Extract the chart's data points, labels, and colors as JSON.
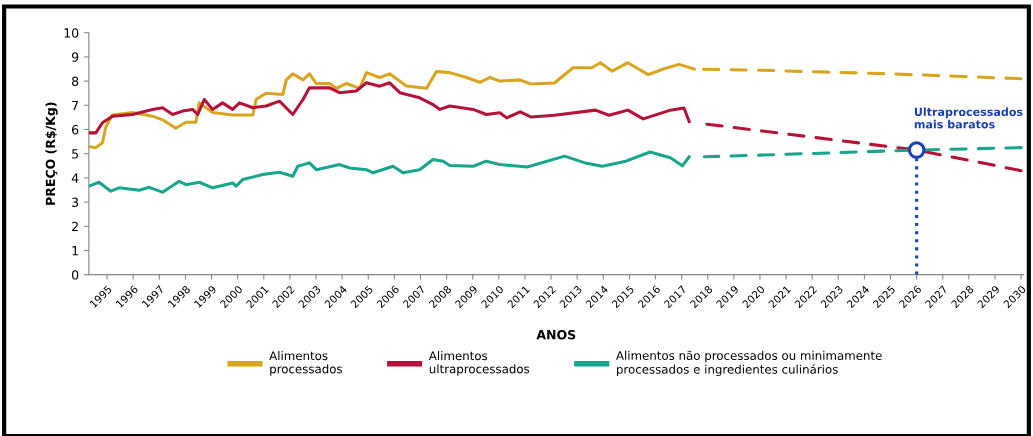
{
  "chart_data": {
    "type": "line",
    "xlabel": "ANOS",
    "ylabel": "PREÇO (R$/Kg)",
    "xlim": [
      1994.3,
      2030.1
    ],
    "ylim": [
      0,
      10
    ],
    "xticks": [
      1995,
      1996,
      1997,
      1998,
      1999,
      2000,
      2001,
      2002,
      2003,
      2004,
      2005,
      2006,
      2007,
      2008,
      2009,
      2010,
      2011,
      2012,
      2013,
      2014,
      2015,
      2016,
      2017,
      2018,
      2019,
      2020,
      2021,
      2022,
      2023,
      2024,
      2025,
      2026,
      2027,
      2028,
      2029,
      2030
    ],
    "yticks": [
      0,
      1,
      2,
      3,
      4,
      5,
      6,
      7,
      8,
      9,
      10
    ],
    "grid": false,
    "legend": "bottom",
    "marker": "none",
    "line_style": "solid",
    "series": [
      {
        "name": "Alimentos\nprocessados",
        "color": "#d9a521",
        "x": [
          1994.31,
          1994.57,
          1994.82,
          1994.95,
          1995.2,
          1995.97,
          1996.74,
          1997.12,
          1997.63,
          1998.02,
          1998.4,
          1998.53,
          1999.04,
          1999.81,
          2000.58,
          2000.71,
          2001.09,
          2001.73,
          2001.86,
          2002.11,
          2002.5,
          2002.75,
          2003.01,
          2003.52,
          2003.78,
          2004.16,
          2004.67,
          2004.93,
          2005.44,
          2005.82,
          2006.46,
          2007.23,
          2007.61,
          2008.12,
          2008.76,
          2009.27,
          2009.66,
          2010.04,
          2010.81,
          2011.22,
          2012.13,
          2012.84,
          2013.56,
          2013.89,
          2014.34,
          2014.94,
          2015.72,
          2016.3,
          2016.9,
          2017.48
        ],
        "values": [
          5.3,
          5.25,
          5.45,
          6.1,
          6.6,
          6.7,
          6.55,
          6.4,
          6.05,
          6.3,
          6.3,
          7.1,
          6.7,
          6.6,
          6.6,
          7.25,
          7.5,
          7.45,
          8.05,
          8.3,
          8.05,
          8.3,
          7.9,
          7.9,
          7.7,
          7.9,
          7.7,
          8.35,
          8.15,
          8.3,
          7.8,
          7.7,
          8.4,
          8.35,
          8.15,
          7.95,
          8.15,
          8.0,
          8.05,
          7.88,
          7.92,
          8.55,
          8.55,
          8.76,
          8.41,
          8.76,
          8.27,
          8.5,
          8.69,
          8.5
        ]
      },
      {
        "name": "Alimentos\nultraprocessados",
        "color": "#b5123a",
        "x": [
          1994.31,
          1994.57,
          1994.82,
          1995.2,
          1995.97,
          1996.74,
          1997.12,
          1997.51,
          1997.89,
          1998.27,
          1998.47,
          1998.72,
          1999.04,
          1999.42,
          1999.81,
          2000.07,
          2000.58,
          2001.09,
          2001.6,
          2002.11,
          2002.5,
          2002.75,
          2003.52,
          2003.9,
          2004.54,
          2004.93,
          2005.44,
          2005.82,
          2006.21,
          2006.97,
          2007.48,
          2007.74,
          2008.12,
          2009.02,
          2009.52,
          2010.04,
          2010.3,
          2010.82,
          2011.22,
          2012.13,
          2013.7,
          2014.22,
          2014.94,
          2015.53,
          2016.57,
          2017.09,
          2017.29
        ],
        "values": [
          5.86,
          5.86,
          6.28,
          6.55,
          6.62,
          6.83,
          6.9,
          6.62,
          6.76,
          6.83,
          6.62,
          7.24,
          6.83,
          7.1,
          6.83,
          7.1,
          6.9,
          6.97,
          7.17,
          6.62,
          7.24,
          7.72,
          7.72,
          7.52,
          7.59,
          7.93,
          7.79,
          7.93,
          7.52,
          7.31,
          7.03,
          6.83,
          6.97,
          6.83,
          6.62,
          6.69,
          6.48,
          6.73,
          6.52,
          6.59,
          6.8,
          6.59,
          6.8,
          6.44,
          6.8,
          6.89,
          6.33
        ]
      },
      {
        "name": "Alimentos não processados ou minimamente\nprocessados e ingredientes culinários",
        "color": "#17a58c",
        "x": [
          1994.31,
          1994.69,
          1995.14,
          1995.46,
          1996.23,
          1996.61,
          1997.12,
          1997.76,
          1998.02,
          1998.53,
          1999.04,
          1999.81,
          1999.94,
          2000.19,
          2000.96,
          2001.6,
          2002.11,
          2002.3,
          2002.75,
          2003.01,
          2003.9,
          2004.29,
          2004.93,
          2005.18,
          2005.95,
          2006.33,
          2006.97,
          2007.48,
          2007.87,
          2008.12,
          2009.02,
          2009.52,
          2010.04,
          2011.09,
          2012.52,
          2013.3,
          2013.96,
          2014.87,
          2015.79,
          2016.57,
          2017.03,
          2017.29
        ],
        "values": [
          3.66,
          3.82,
          3.45,
          3.59,
          3.49,
          3.61,
          3.41,
          3.86,
          3.72,
          3.82,
          3.59,
          3.79,
          3.66,
          3.93,
          4.14,
          4.23,
          4.07,
          4.48,
          4.62,
          4.34,
          4.55,
          4.41,
          4.34,
          4.21,
          4.48,
          4.21,
          4.34,
          4.76,
          4.69,
          4.51,
          4.48,
          4.69,
          4.55,
          4.45,
          4.9,
          4.62,
          4.48,
          4.69,
          5.07,
          4.83,
          4.5,
          4.87
        ]
      },
      {
        "color": "#d9a521",
        "line_style": "dashed",
        "x": [
          2017.48,
          2020,
          2025,
          2030
        ],
        "values": [
          8.5,
          8.45,
          8.3,
          8.1
        ]
      },
      {
        "color": "#b5123a",
        "line_style": "dashed",
        "x": [
          2017.87,
          2020,
          2026,
          2030
        ],
        "values": [
          6.23,
          5.95,
          5.15,
          4.3
        ]
      },
      {
        "color": "#17a58c",
        "line_style": "dashed",
        "x": [
          2017.87,
          2020,
          2026,
          2030
        ],
        "values": [
          4.87,
          4.94,
          5.15,
          5.25
        ]
      },
      {
        "type": "scatter",
        "color": "#1a3fb5",
        "marker": "circle",
        "x": [
          2026
        ],
        "values": [
          5.15
        ]
      }
    ],
    "ref_lines": [
      {
        "axis": "x",
        "value": 2026,
        "color": "#1a3fb5",
        "line_style": "dotted"
      }
    ],
    "annotations": [
      {
        "text": "Ultraprocessados\nmais baratos",
        "x": 2026,
        "y": 5.15
      }
    ]
  }
}
